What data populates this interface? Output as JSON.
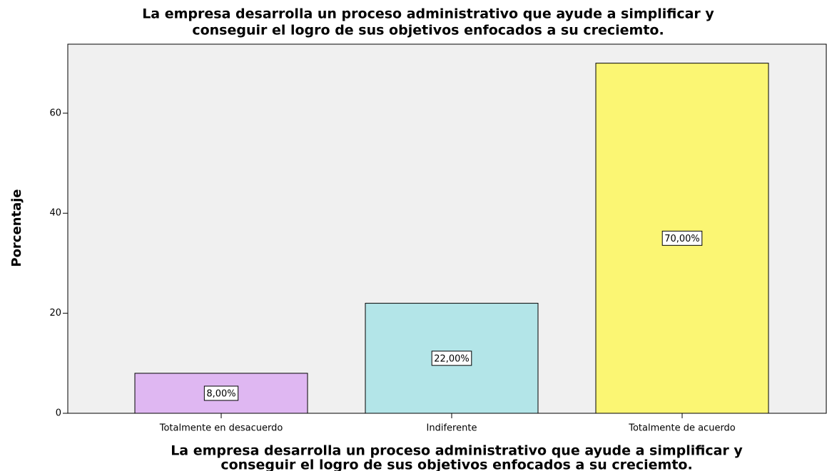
{
  "chart_data": {
    "type": "bar",
    "title": [
      "La empresa desarrolla un proceso administrativo que ayude a simplificar y",
      "conseguir el logro de sus objetivos enfocados a su creciemto."
    ],
    "xlabel": [
      "La empresa desarrolla un proceso administrativo que ayude a simplificar y",
      "conseguir el logro de sus objetivos enfocados a su creciemto."
    ],
    "ylabel": "Porcentaje",
    "categories": [
      "Totalmente en desacuerdo",
      "Indiferente",
      "Totalmente de acuerdo"
    ],
    "values": [
      8,
      22,
      70
    ],
    "value_labels": [
      "8,00%",
      "22,00%",
      "70,00%"
    ],
    "colors": [
      "#dfb7f2",
      "#b3e5e8",
      "#fbf673"
    ],
    "ylim": [
      0,
      73.8
    ],
    "yticks": [
      0,
      20,
      40,
      60
    ]
  }
}
